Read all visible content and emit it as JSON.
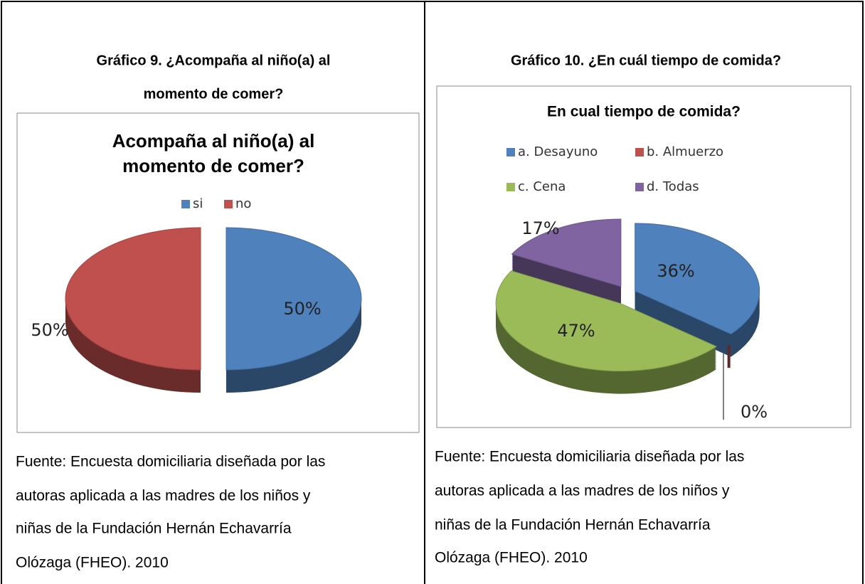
{
  "cells": [
    {
      "heading": [
        "Gráfico 9.  ¿Acompaña al niño(a) al",
        "momento de comer?"
      ],
      "chart": {
        "type": "pie",
        "title": [
          "Acompaña al niño(a) al",
          "momento de comer?"
        ],
        "categories": [
          "si",
          "no"
        ],
        "values": [
          50,
          50
        ],
        "value_labels": [
          "50%",
          "50%"
        ],
        "colors": [
          "#4f81bd",
          "#c0504d"
        ]
      },
      "source": [
        "Fuente: Encuesta domiciliaria diseñada por las",
        "autoras aplicada a las madres de los niños y",
        "niñas de la Fundación Hernán Echavarría",
        "Olózaga (FHEO). 2010"
      ]
    },
    {
      "heading": [
        "Gráfico 10. ¿En cuál tiempo de comida?"
      ],
      "chart": {
        "type": "pie",
        "title": [
          "En cual tiempo de comida?"
        ],
        "categories": [
          "a. Desayuno",
          "b. Almuerzo",
          "c. Cena",
          "d. Todas"
        ],
        "values": [
          36,
          0,
          47,
          17
        ],
        "value_labels": [
          "36%",
          "0%",
          "47%",
          "17%"
        ],
        "colors": [
          "#4f81bd",
          "#c0504d",
          "#9bbb59",
          "#8064a2"
        ]
      },
      "source": [
        "Fuente: Encuesta domiciliaria diseñada por las",
        "autoras aplicada a las madres de los niños y",
        "niñas de la Fundación Hernán Echavarría",
        "Olózaga (FHEO). 2010"
      ]
    }
  ]
}
